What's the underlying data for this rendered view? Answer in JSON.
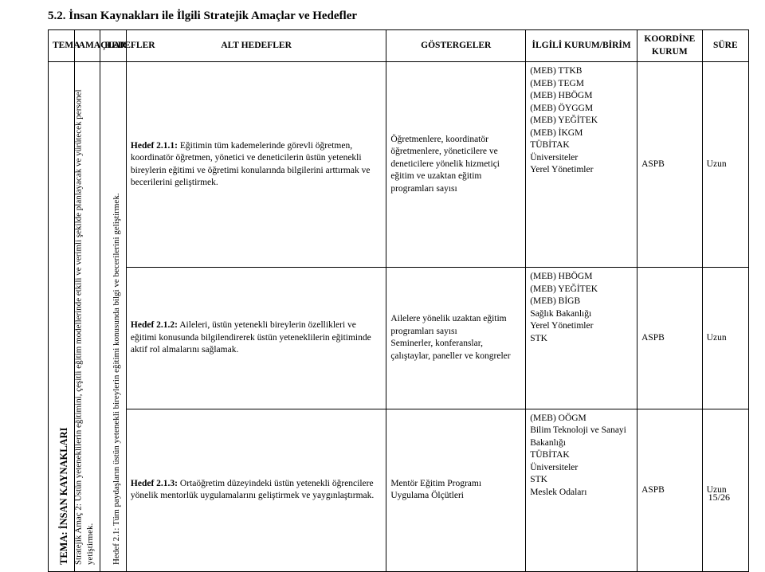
{
  "section_title": "5.2. İnsan Kaynakları ile İlgili Stratejik Amaçlar ve Hedefler",
  "table": {
    "header": {
      "tema": "TEMA",
      "amaclar": "AMAÇLAR",
      "hedefler": "HEDEFLER",
      "alt_hedefler": "ALT HEDEFLER",
      "gostergeler": "GÖSTERGELER",
      "ilgili": "İLGİLİ KURUM/BİRİM",
      "koordine": "KOORDİNE KURUM",
      "sure": "SÜRE"
    },
    "tema_text": "TEMA: İNSAN KAYNAKLARI",
    "amac_text": "Stratejik Amaç 2: Üstün yeteneklilerin eğitimini, çeşitli eğitim modellerinde etkili ve verimli şekilde planlayacak ve yürütecek personel yetiştirmek.",
    "hedef_text": "Hedef 2.1: Tüm paydaşların üstün yetenekli bireylerin eğitimi konusunda bilgi ve becerilerini geliştirmek.",
    "rows": [
      {
        "alt_hedef_label": "Hedef 2.1.1:",
        "alt_hedef_text": " Eğitimin tüm kademelerinde görevli öğretmen, koordinatör öğretmen, yönetici ve deneticilerin üstün yetenekli bireylerin eğitimi ve öğretimi konularında bilgilerini arttırmak ve becerilerini geliştirmek.",
        "gostergeler": "Öğretmenlere, koordinatör öğretmenlere, yöneticilere ve deneticilere yönelik hizmetiçi eğitim ve uzaktan eğitim programları sayısı",
        "ilgili": "(MEB) TTKB\n(MEB) TEGM\n(MEB) HBÖGM\n(MEB) ÖYGGM\n(MEB) YEĞİTEK\n(MEB) İKGM\nTÜBİTAK\nÜniversiteler\nYerel Yönetimler",
        "koordine": "ASPB",
        "sure": "Uzun"
      },
      {
        "alt_hedef_label": "Hedef 2.1.2:",
        "alt_hedef_text": " Aileleri, üstün yetenekli bireylerin özellikleri ve eğitimi konusunda bilgilendirerek üstün yeteneklilerin eğitiminde aktif rol almalarını sağlamak.",
        "gostergeler": "Ailelere yönelik uzaktan eğitim programları sayısı\nSeminerler, konferanslar, çalıştaylar, paneller ve kongreler",
        "ilgili": "(MEB) HBÖGM\n(MEB) YEĞİTEK\n(MEB) BİGB\nSağlık Bakanlığı\nYerel Yönetimler\nSTK",
        "koordine": "ASPB",
        "sure": "Uzun"
      },
      {
        "alt_hedef_label": "Hedef 2.1.3:",
        "alt_hedef_text": " Ortaöğretim düzeyindeki üstün yetenekli öğrencilere yönelik mentorlük uygulamalarını geliştirmek ve yaygınlaştırmak.",
        "gostergeler": "Mentör Eğitim Programı Uygulama Ölçütleri",
        "ilgili": "(MEB) OÖGM\nBilim Teknoloji ve Sanayi Bakanlığı\nTÜBİTAK\nÜniversiteler\nSTK\nMeslek Odaları",
        "koordine": "ASPB",
        "sure": "Uzun"
      }
    ]
  },
  "page_number": "15/26"
}
